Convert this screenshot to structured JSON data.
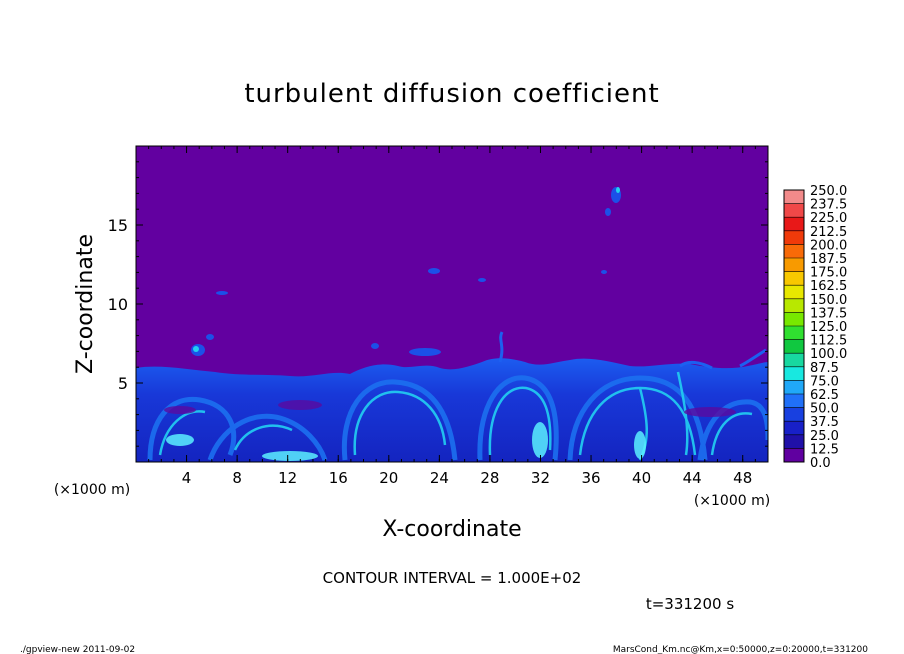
{
  "chart_data": {
    "type": "heatmap",
    "title": "turbulent diffusion coefficient",
    "xlabel": "X-coordinate",
    "ylabel": "Z-coordinate",
    "xunit": "(×1000 m)",
    "yunit": "(×1000 m)",
    "xlim": [
      0,
      50
    ],
    "ylim": [
      0,
      20
    ],
    "xticks": [
      "4",
      "8",
      "12",
      "16",
      "20",
      "24",
      "28",
      "32",
      "36",
      "40",
      "44",
      "48"
    ],
    "yticks": [
      "5",
      "10",
      "15"
    ],
    "colorbar": {
      "levels": [
        "250.0",
        "237.5",
        "225.0",
        "212.5",
        "200.0",
        "187.5",
        "175.0",
        "162.5",
        "150.0",
        "137.5",
        "125.0",
        "112.5",
        "100.0",
        "87.5",
        "75.0",
        "62.5",
        "50.0",
        "37.5",
        "25.0",
        "12.5",
        "0.0"
      ],
      "colors": [
        "#f28a8a",
        "#f04848",
        "#e81818",
        "#f03a0a",
        "#f86a08",
        "#f89a00",
        "#f8c800",
        "#e8e800",
        "#b8e800",
        "#78e800",
        "#30e030",
        "#10c840",
        "#18d8a0",
        "#18e8e0",
        "#20a8f8",
        "#2070f8",
        "#1840e0",
        "#1820c8",
        "#2010a8",
        "#6000a0"
      ]
    },
    "background_value": "0.0",
    "boundary_layer_top_km": 6,
    "contour_interval": "CONTOUR INTERVAL = 1.000E+02",
    "time": "t=331200 s"
  },
  "footer": {
    "left": "./gpview-new 2011-09-02",
    "right": "MarsCond_Km.nc@Km,x=0:50000,z=0:20000,t=331200"
  },
  "colors": {
    "background": "#6200a0",
    "layer_base": "#1424c8",
    "eddy": "#1c64f0",
    "eddy_bright": "#22c8f0",
    "highlight": "#5af0ff"
  }
}
